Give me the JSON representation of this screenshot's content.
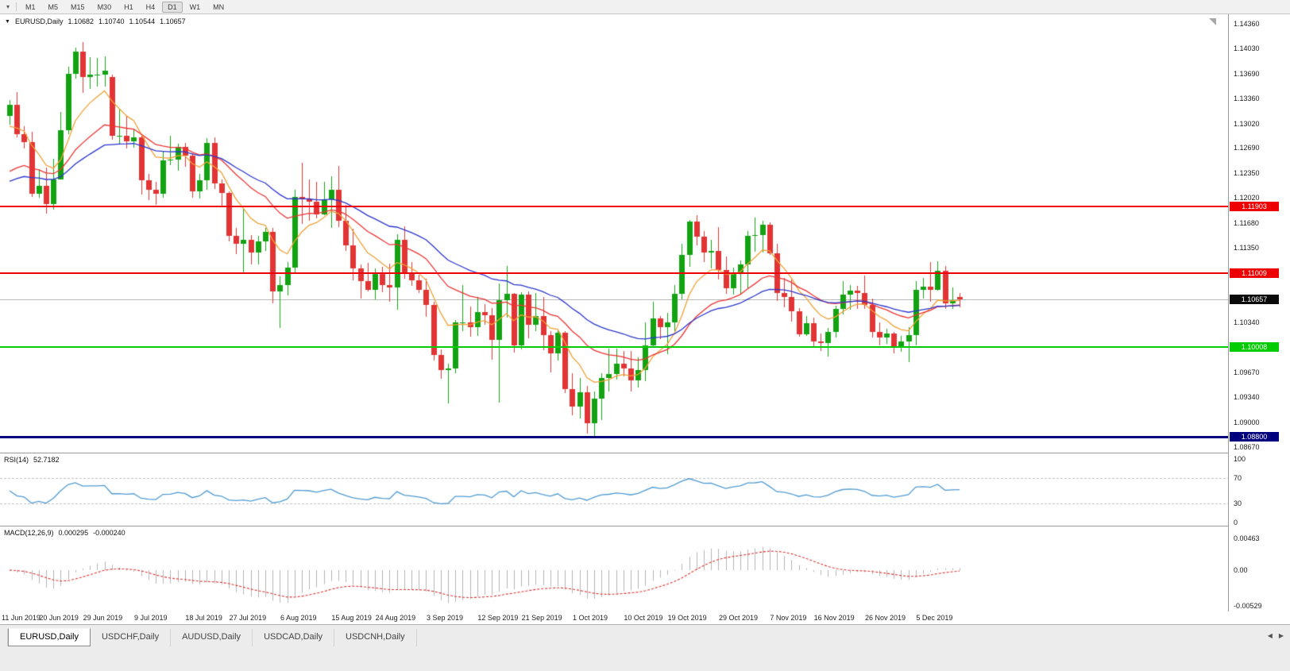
{
  "toolbar": {
    "menu_icon": "▾",
    "timeframes": [
      "M1",
      "M5",
      "M15",
      "M30",
      "H1",
      "H4",
      "D1",
      "W1",
      "MN"
    ],
    "active": "D1"
  },
  "chart_header": {
    "collapse_icon": "▼",
    "symbol": "EURUSD,Daily",
    "open": "1.10682",
    "high": "1.10740",
    "low": "1.10544",
    "close": "1.10657"
  },
  "tabs": {
    "items": [
      "EURUSD,Daily",
      "USDCHF,Daily",
      "AUDUSD,Daily",
      "USDCAD,Daily",
      "USDCNH,Daily"
    ],
    "active_index": 0,
    "prev_icon": "◀",
    "next_icon": "▶"
  },
  "chart_data": {
    "type": "candlestick",
    "symbol": "EURUSD",
    "timeframe": "Daily",
    "ylim": [
      1.0859,
      1.1449
    ],
    "bull_color": "#12a212",
    "bear_color": "#e23434",
    "y_ticks": [
      "1.14360",
      "1.14030",
      "1.13690",
      "1.13360",
      "1.13020",
      "1.12690",
      "1.12350",
      "1.12020",
      "1.11680",
      "1.11350",
      "1.10340",
      "1.09670",
      "1.09340",
      "1.09000",
      "1.08670"
    ],
    "x_labels": [
      {
        "t": "11 Jun 2019",
        "i": 0
      },
      {
        "t": "20 Jun 2019",
        "i": 7
      },
      {
        "t": "29 Jun 2019",
        "i": 13
      },
      {
        "t": "9 Jul 2019",
        "i": 20
      },
      {
        "t": "18 Jul 2019",
        "i": 27
      },
      {
        "t": "27 Jul 2019",
        "i": 33
      },
      {
        "t": "6 Aug 2019",
        "i": 40
      },
      {
        "t": "15 Aug 2019",
        "i": 47
      },
      {
        "t": "24 Aug 2019",
        "i": 53
      },
      {
        "t": "3 Sep 2019",
        "i": 60
      },
      {
        "t": "12 Sep 2019",
        "i": 67
      },
      {
        "t": "21 Sep 2019",
        "i": 73
      },
      {
        "t": "1 Oct 2019",
        "i": 80
      },
      {
        "t": "10 Oct 2019",
        "i": 87
      },
      {
        "t": "19 Oct 2019",
        "i": 93
      },
      {
        "t": "29 Oct 2019",
        "i": 100
      },
      {
        "t": "7 Nov 2019",
        "i": 107
      },
      {
        "t": "16 Nov 2019",
        "i": 113
      },
      {
        "t": "26 Nov 2019",
        "i": 120
      },
      {
        "t": "5 Dec 2019",
        "i": 127
      }
    ],
    "hlines": [
      {
        "value": 1.11903,
        "label": "1.11903",
        "color": "#ee0000",
        "width": 2
      },
      {
        "value": 1.11009,
        "label": "1.11009",
        "color": "#ee0000",
        "width": 2
      },
      {
        "value": 1.10008,
        "label": "1.10008",
        "color": "#00cc00",
        "width": 2
      },
      {
        "value": 1.088,
        "label": "1.08800",
        "color": "#00007f",
        "width": 3
      }
    ],
    "current_price": {
      "value": 1.10657,
      "label": "1.10657",
      "line_color": "#bcbcbc",
      "badge_color": "#0a0a0a"
    },
    "overlays": [
      {
        "name": "ma-fast",
        "type": "ema",
        "period": 8,
        "seed": 1.129,
        "color": "#f0a035"
      },
      {
        "name": "ma-mid",
        "type": "ema",
        "period": 20,
        "seed": 1.1228,
        "color": "#ee3333"
      },
      {
        "name": "ma-slow",
        "type": "ema",
        "period": 34,
        "seed": 1.1218,
        "color": "#2b35cf"
      }
    ],
    "indicators": {
      "rsi": {
        "name": "RSI(14)",
        "value": "52.7182",
        "period": 14,
        "color": "#4f9ad2",
        "levels": [
          70,
          30
        ],
        "range": [
          0,
          100
        ],
        "axis_labels": [
          "100",
          "70",
          "30",
          "0"
        ]
      },
      "macd": {
        "name": "MACD(12,26,9)",
        "value_main": "0.000295",
        "value_signal": "-0.000240",
        "fast": 12,
        "slow": 26,
        "signal": 9,
        "hist_color": "#b4b4b4",
        "signal_color": "#e03030",
        "axis_labels": [
          "0.00463",
          "0.00",
          "-0.00529"
        ]
      }
    },
    "ohlc": [
      [
        1.1312,
        1.1334,
        1.1301,
        1.1327
      ],
      [
        1.1327,
        1.1344,
        1.1283,
        1.1288
      ],
      [
        1.1288,
        1.1298,
        1.1268,
        1.1277
      ],
      [
        1.1277,
        1.1291,
        1.1203,
        1.1207
      ],
      [
        1.1207,
        1.1241,
        1.1202,
        1.1218
      ],
      [
        1.1218,
        1.1243,
        1.1181,
        1.1194
      ],
      [
        1.1194,
        1.1255,
        1.1187,
        1.1227
      ],
      [
        1.1227,
        1.1317,
        1.1226,
        1.1293
      ],
      [
        1.1293,
        1.1378,
        1.1287,
        1.1369
      ],
      [
        1.1369,
        1.1404,
        1.1362,
        1.1399
      ],
      [
        1.1399,
        1.1412,
        1.1344,
        1.1365
      ],
      [
        1.1365,
        1.1391,
        1.1348,
        1.1368
      ],
      [
        1.1368,
        1.139,
        1.1351,
        1.1368
      ],
      [
        1.1368,
        1.1392,
        1.1351,
        1.1373
      ],
      [
        1.1365,
        1.1368,
        1.128,
        1.1285
      ],
      [
        1.1285,
        1.1322,
        1.1275,
        1.1286
      ],
      [
        1.1286,
        1.1312,
        1.1268,
        1.1278
      ],
      [
        1.1278,
        1.1295,
        1.1269,
        1.1283
      ],
      [
        1.1283,
        1.1288,
        1.1207,
        1.1226
      ],
      [
        1.1226,
        1.1234,
        1.1199,
        1.1213
      ],
      [
        1.1213,
        1.1224,
        1.1193,
        1.1207
      ],
      [
        1.1207,
        1.1264,
        1.1202,
        1.1252
      ],
      [
        1.1252,
        1.1285,
        1.1245,
        1.1253
      ],
      [
        1.1253,
        1.1275,
        1.1239,
        1.127
      ],
      [
        1.127,
        1.1276,
        1.1244,
        1.1259
      ],
      [
        1.1259,
        1.1262,
        1.1202,
        1.1211
      ],
      [
        1.1211,
        1.1234,
        1.1201,
        1.1226
      ],
      [
        1.1226,
        1.1282,
        1.1212,
        1.1276
      ],
      [
        1.1276,
        1.1283,
        1.1213,
        1.1221
      ],
      [
        1.1221,
        1.1227,
        1.1191,
        1.1209
      ],
      [
        1.1209,
        1.1211,
        1.1144,
        1.1151
      ],
      [
        1.1151,
        1.1161,
        1.1126,
        1.114
      ],
      [
        1.114,
        1.1187,
        1.1101,
        1.1145
      ],
      [
        1.1145,
        1.1152,
        1.1112,
        1.1128
      ],
      [
        1.1128,
        1.1151,
        1.1113,
        1.1143
      ],
      [
        1.1143,
        1.1162,
        1.1131,
        1.1156
      ],
      [
        1.1156,
        1.1162,
        1.106,
        1.1076
      ],
      [
        1.1076,
        1.1096,
        1.1027,
        1.1085
      ],
      [
        1.1085,
        1.1116,
        1.1071,
        1.1108
      ],
      [
        1.1108,
        1.1213,
        1.1101,
        1.1203
      ],
      [
        1.1203,
        1.1249,
        1.1167,
        1.12
      ],
      [
        1.12,
        1.1227,
        1.1171,
        1.1197
      ],
      [
        1.1197,
        1.1224,
        1.1175,
        1.118
      ],
      [
        1.118,
        1.1223,
        1.1178,
        1.12
      ],
      [
        1.12,
        1.1231,
        1.1162,
        1.1213
      ],
      [
        1.1213,
        1.1245,
        1.1163,
        1.1171
      ],
      [
        1.1171,
        1.1192,
        1.113,
        1.1138
      ],
      [
        1.1138,
        1.116,
        1.109,
        1.1107
      ],
      [
        1.1107,
        1.1112,
        1.1066,
        1.109
      ],
      [
        1.109,
        1.1114,
        1.1075,
        1.1078
      ],
      [
        1.1078,
        1.1107,
        1.1065,
        1.1099
      ],
      [
        1.1099,
        1.1109,
        1.1075,
        1.1085
      ],
      [
        1.1085,
        1.1113,
        1.1062,
        1.1081
      ],
      [
        1.1081,
        1.1153,
        1.1051,
        1.1145
      ],
      [
        1.1145,
        1.1164,
        1.1093,
        1.1101
      ],
      [
        1.1101,
        1.1116,
        1.1084,
        1.1091
      ],
      [
        1.1091,
        1.1098,
        1.1073,
        1.1078
      ],
      [
        1.1078,
        1.1093,
        1.1042,
        1.1058
      ],
      [
        1.1058,
        1.1062,
        1.0983,
        1.0991
      ],
      [
        1.0991,
        1.0998,
        1.0958,
        1.097
      ],
      [
        1.097,
        1.0979,
        1.0926,
        1.0972
      ],
      [
        1.0972,
        1.1038,
        1.0966,
        1.1034
      ],
      [
        1.1034,
        1.1085,
        1.1023,
        1.1034
      ],
      [
        1.1034,
        1.1056,
        1.1015,
        1.1028
      ],
      [
        1.1028,
        1.1068,
        1.1016,
        1.1048
      ],
      [
        1.1048,
        1.1059,
        1.1031,
        1.1044
      ],
      [
        1.1044,
        1.1054,
        1.0984,
        1.1011
      ],
      [
        1.1011,
        1.1087,
        1.0927,
        1.1064
      ],
      [
        1.1064,
        1.111,
        1.1041,
        1.1073
      ],
      [
        1.1073,
        1.1074,
        1.0994,
        1.1003
      ],
      [
        1.1003,
        1.1075,
        1.0998,
        1.1072
      ],
      [
        1.1072,
        1.1076,
        1.1013,
        1.1031
      ],
      [
        1.1031,
        1.1074,
        1.1023,
        1.1043
      ],
      [
        1.1043,
        1.1068,
        1.0996,
        1.1017
      ],
      [
        1.1017,
        1.1022,
        1.0966,
        1.0993
      ],
      [
        1.0993,
        1.1024,
        1.0983,
        1.102
      ],
      [
        1.102,
        1.1023,
        1.094,
        1.0944
      ],
      [
        1.0944,
        1.0966,
        1.0909,
        1.0921
      ],
      [
        1.0921,
        1.0959,
        1.0904,
        1.094
      ],
      [
        1.094,
        1.0949,
        1.0885,
        1.0899
      ],
      [
        1.0899,
        1.0941,
        1.0879,
        1.0932
      ],
      [
        1.0932,
        1.0966,
        1.0903,
        1.0959
      ],
      [
        1.0959,
        1.0999,
        1.0941,
        1.0965
      ],
      [
        1.0965,
        1.0999,
        1.0957,
        1.0979
      ],
      [
        1.0979,
        1.0996,
        1.0962,
        1.0972
      ],
      [
        1.0972,
        1.0996,
        1.0941,
        1.0956
      ],
      [
        1.0956,
        1.0987,
        1.0946,
        1.097
      ],
      [
        1.097,
        1.1034,
        1.0955,
        1.1003
      ],
      [
        1.1003,
        1.1062,
        1.1002,
        1.104
      ],
      [
        1.104,
        1.1043,
        1.1012,
        1.1028
      ],
      [
        1.1028,
        1.1047,
        1.0991,
        1.1034
      ],
      [
        1.1034,
        1.1085,
        1.1023,
        1.1073
      ],
      [
        1.1073,
        1.114,
        1.1065,
        1.1125
      ],
      [
        1.1125,
        1.1172,
        1.1109,
        1.117
      ],
      [
        1.117,
        1.1179,
        1.1138,
        1.115
      ],
      [
        1.115,
        1.1157,
        1.1115,
        1.1128
      ],
      [
        1.1128,
        1.1145,
        1.1106,
        1.1131
      ],
      [
        1.1131,
        1.1163,
        1.1092,
        1.1105
      ],
      [
        1.1105,
        1.1123,
        1.1073,
        1.108
      ],
      [
        1.108,
        1.1108,
        1.1072,
        1.1099
      ],
      [
        1.1099,
        1.1118,
        1.1073,
        1.1112
      ],
      [
        1.1112,
        1.1157,
        1.1079,
        1.1151
      ],
      [
        1.1151,
        1.1175,
        1.1129,
        1.1152
      ],
      [
        1.1152,
        1.1171,
        1.1128,
        1.1166
      ],
      [
        1.1166,
        1.1169,
        1.1125,
        1.1127
      ],
      [
        1.1127,
        1.114,
        1.1063,
        1.1074
      ],
      [
        1.1074,
        1.1094,
        1.1054,
        1.1068
      ],
      [
        1.1068,
        1.1092,
        1.1035,
        1.1049
      ],
      [
        1.1049,
        1.1054,
        1.1016,
        1.1018
      ],
      [
        1.1018,
        1.1043,
        1.1016,
        1.1033
      ],
      [
        1.1033,
        1.1041,
        1.1002,
        1.1009
      ],
      [
        1.1009,
        1.1019,
        1.0995,
        1.1007
      ],
      [
        1.1007,
        1.1027,
        1.0989,
        1.1021
      ],
      [
        1.1021,
        1.1057,
        1.1014,
        1.1052
      ],
      [
        1.1052,
        1.109,
        1.1045,
        1.1072
      ],
      [
        1.1072,
        1.1085,
        1.1052,
        1.1077
      ],
      [
        1.1077,
        1.1083,
        1.1052,
        1.1074
      ],
      [
        1.1074,
        1.1097,
        1.1052,
        1.1058
      ],
      [
        1.1058,
        1.1066,
        1.1014,
        1.1021
      ],
      [
        1.1021,
        1.1034,
        1.1003,
        1.1014
      ],
      [
        1.1014,
        1.1026,
        1.1006,
        1.1019
      ],
      [
        1.1019,
        1.1021,
        1.0992,
        1.1001
      ],
      [
        1.1001,
        1.1016,
        1.0995,
        1.1009
      ],
      [
        1.1009,
        1.1028,
        1.0981,
        1.1017
      ],
      [
        1.1017,
        1.109,
        1.1003,
        1.1078
      ],
      [
        1.1078,
        1.1094,
        1.1066,
        1.1082
      ],
      [
        1.1082,
        1.1116,
        1.1063,
        1.1078
      ],
      [
        1.1078,
        1.1117,
        1.1077,
        1.1104
      ],
      [
        1.1104,
        1.111,
        1.1052,
        1.106
      ],
      [
        1.106,
        1.1081,
        1.1052,
        1.1064
      ],
      [
        1.10682,
        1.1074,
        1.10544,
        1.10657
      ]
    ]
  }
}
